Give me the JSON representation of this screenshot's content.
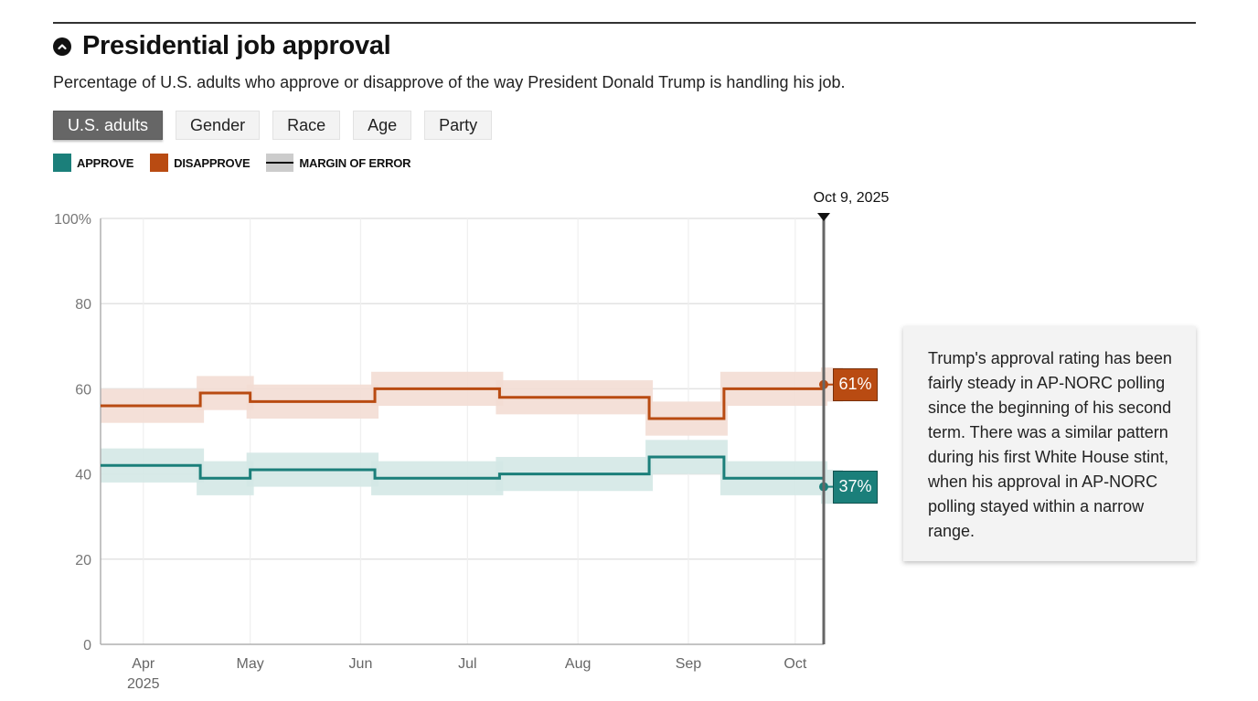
{
  "header": {
    "title": "Presidential job approval",
    "subtitle": "Percentage of U.S. adults who approve or disapprove of the way President Donald Trump is handling his job.",
    "collapse_icon": "chevron-up-circle-icon"
  },
  "tabs": [
    {
      "label": "U.S. adults",
      "active": true
    },
    {
      "label": "Gender",
      "active": false
    },
    {
      "label": "Race",
      "active": false
    },
    {
      "label": "Age",
      "active": false
    },
    {
      "label": "Party",
      "active": false
    }
  ],
  "legend": {
    "approve": "APPROVE",
    "disapprove": "DISAPPROVE",
    "moe": "MARGIN OF ERROR"
  },
  "colors": {
    "approve": "#1b7f7a",
    "approve_band": "#d4e8e6",
    "disapprove": "#b94b12",
    "disapprove_band": "#f3ddd4",
    "active_tab": "#666666"
  },
  "annotation": "Trump's approval rating has been fairly steady in AP-NORC polling since the beginning of his second term. There was a similar pattern during his first White House stint, when his approval in AP-NORC polling stayed within a narrow range.",
  "chart_data": {
    "type": "line",
    "step": true,
    "title": "Presidential job approval",
    "xlabel": "",
    "ylabel": "",
    "ylim": [
      0,
      100
    ],
    "y_ticks": [
      {
        "value": 0,
        "label": "0"
      },
      {
        "value": 20,
        "label": "20"
      },
      {
        "value": 40,
        "label": "40"
      },
      {
        "value": 60,
        "label": "60"
      },
      {
        "value": 80,
        "label": "80"
      },
      {
        "value": 100,
        "label": "100%"
      }
    ],
    "x_ticks": [
      {
        "date": "2025-04-01",
        "label": "Apr",
        "sub": "2025"
      },
      {
        "date": "2025-05-01",
        "label": "May",
        "sub": ""
      },
      {
        "date": "2025-06-01",
        "label": "Jun",
        "sub": ""
      },
      {
        "date": "2025-07-01",
        "label": "Jul",
        "sub": ""
      },
      {
        "date": "2025-08-01",
        "label": "Aug",
        "sub": ""
      },
      {
        "date": "2025-09-01",
        "label": "Sep",
        "sub": ""
      },
      {
        "date": "2025-10-01",
        "label": "Oct",
        "sub": ""
      }
    ],
    "xlim": [
      "2025-03-20",
      "2025-10-09"
    ],
    "grid": true,
    "legend_position": "top-left",
    "marker": {
      "date": "2025-10-09",
      "label": "Oct 9, 2025"
    },
    "series": [
      {
        "name": "Approve",
        "key": "approve",
        "moe": 4,
        "steps": [
          {
            "start": "2025-03-20",
            "end": "2025-04-17",
            "value": 42
          },
          {
            "start": "2025-04-17",
            "end": "2025-05-01",
            "value": 39
          },
          {
            "start": "2025-05-01",
            "end": "2025-06-05",
            "value": 41
          },
          {
            "start": "2025-06-05",
            "end": "2025-07-10",
            "value": 39
          },
          {
            "start": "2025-07-10",
            "end": "2025-08-21",
            "value": 40
          },
          {
            "start": "2025-08-21",
            "end": "2025-09-11",
            "value": 44
          },
          {
            "start": "2025-09-11",
            "end": "2025-10-09",
            "value": 39
          }
        ],
        "latest": {
          "date": "2025-10-09",
          "value": 37,
          "label": "37%"
        }
      },
      {
        "name": "Disapprove",
        "key": "disapprove",
        "moe": 4,
        "steps": [
          {
            "start": "2025-03-20",
            "end": "2025-04-17",
            "value": 56
          },
          {
            "start": "2025-04-17",
            "end": "2025-05-01",
            "value": 59
          },
          {
            "start": "2025-05-01",
            "end": "2025-06-05",
            "value": 57
          },
          {
            "start": "2025-06-05",
            "end": "2025-07-10",
            "value": 60
          },
          {
            "start": "2025-07-10",
            "end": "2025-08-21",
            "value": 58
          },
          {
            "start": "2025-08-21",
            "end": "2025-09-11",
            "value": 53
          },
          {
            "start": "2025-09-11",
            "end": "2025-10-09",
            "value": 60
          }
        ],
        "latest": {
          "date": "2025-10-09",
          "value": 61,
          "label": "61%"
        }
      }
    ]
  }
}
